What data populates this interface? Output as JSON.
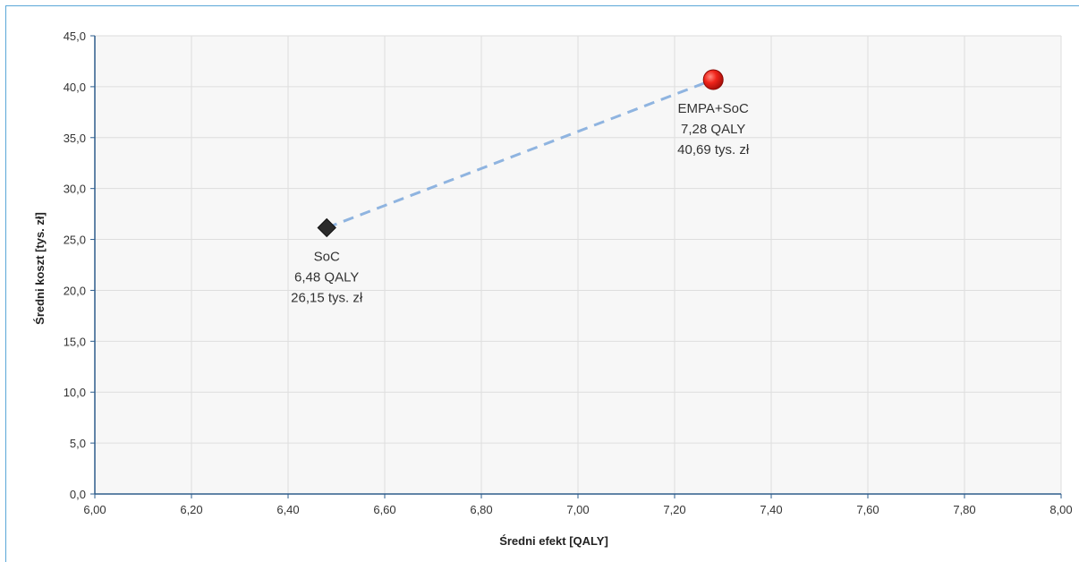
{
  "chart_data": {
    "type": "scatter",
    "xlabel": "Średni efekt [QALY]",
    "ylabel": "Średni koszt [tys. zł]",
    "xlim": [
      6.0,
      8.0
    ],
    "ylim": [
      0.0,
      45.0
    ],
    "x_tick_labels": [
      "6,00",
      "6,20",
      "6,40",
      "6,60",
      "6,80",
      "7,00",
      "7,20",
      "7,40",
      "7,60",
      "7,80",
      "8,00"
    ],
    "y_tick_labels": [
      "0,0",
      "5,0",
      "10,0",
      "15,0",
      "20,0",
      "25,0",
      "30,0",
      "35,0",
      "40,0",
      "45,0"
    ],
    "grid": true,
    "points": [
      {
        "name": "SoC",
        "x": 6.48,
        "y": 26.15,
        "marker": "diamond",
        "color": "#333333",
        "labels": [
          "SoC",
          "6,48 QALY",
          "26,15 tys. zł"
        ]
      },
      {
        "name": "EMPA+SoC",
        "x": 7.28,
        "y": 40.69,
        "marker": "circle",
        "color": "#e8261c",
        "labels": [
          "EMPA+SoC",
          "7,28 QALY",
          "40,69 tys. zł"
        ]
      }
    ],
    "connector": {
      "style": "dashed",
      "color": "#8fb4e0"
    }
  }
}
